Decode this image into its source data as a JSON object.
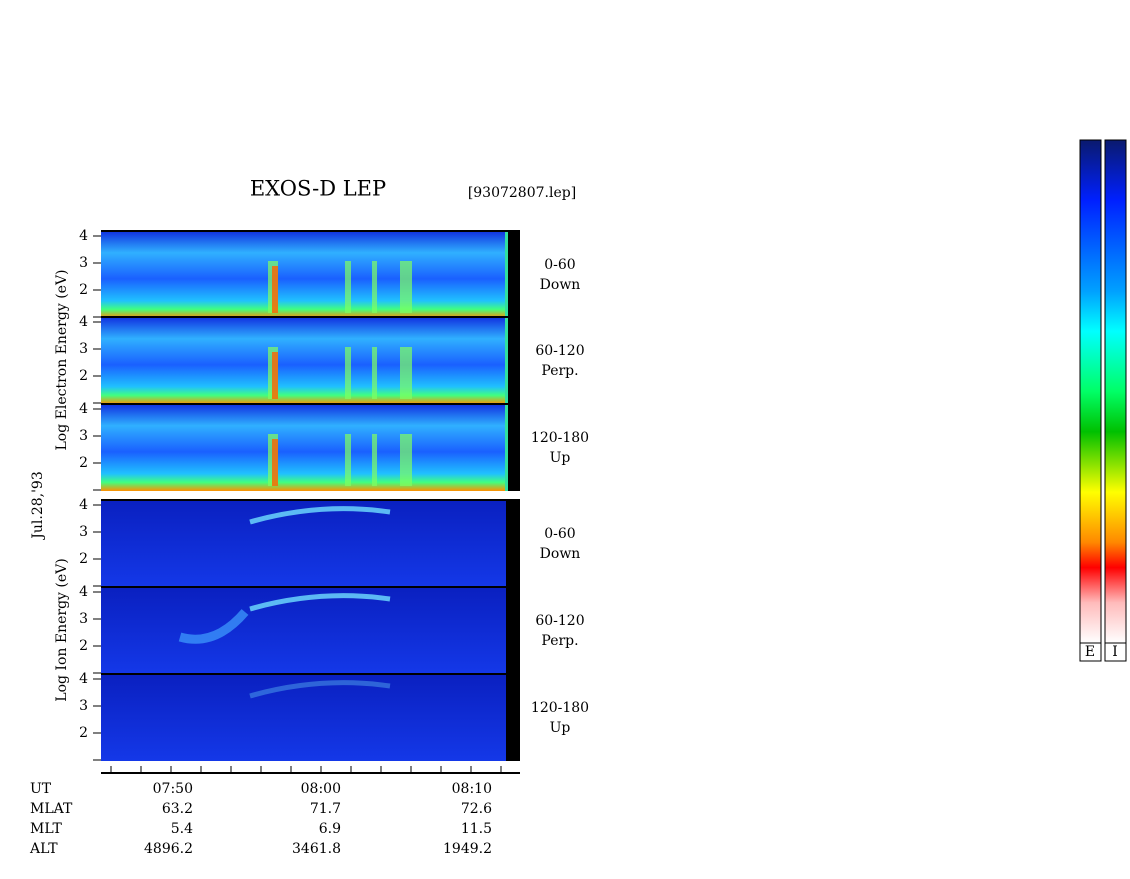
{
  "header": {
    "title": "EXOS-D LEP",
    "file": "[93072807.lep]"
  },
  "date": "Jul.28,'93",
  "electron_axis_label": "Log  Electron  Energy (eV)",
  "ion_axis_label": "Log  Ion  Energy (eV)",
  "energy_ticks": [
    "4",
    "3",
    "2"
  ],
  "panels": [
    {
      "pitch": "0-60",
      "direction": "Down"
    },
    {
      "pitch": "60-120",
      "direction": "Perp."
    },
    {
      "pitch": "120-180",
      "direction": "Up"
    }
  ],
  "ephemeris": [
    {
      "name": "UT",
      "values": [
        "07:50",
        "08:00",
        "08:10"
      ]
    },
    {
      "name": "MLAT",
      "values": [
        "63.2",
        "71.7",
        "72.6"
      ]
    },
    {
      "name": "MLT",
      "values": [
        "5.4",
        "6.9",
        "11.5"
      ]
    },
    {
      "name": "ALT",
      "values": [
        "4896.2",
        "3461.8",
        "1949.2"
      ]
    }
  ],
  "color_bars": [
    "E",
    "I"
  ]
}
